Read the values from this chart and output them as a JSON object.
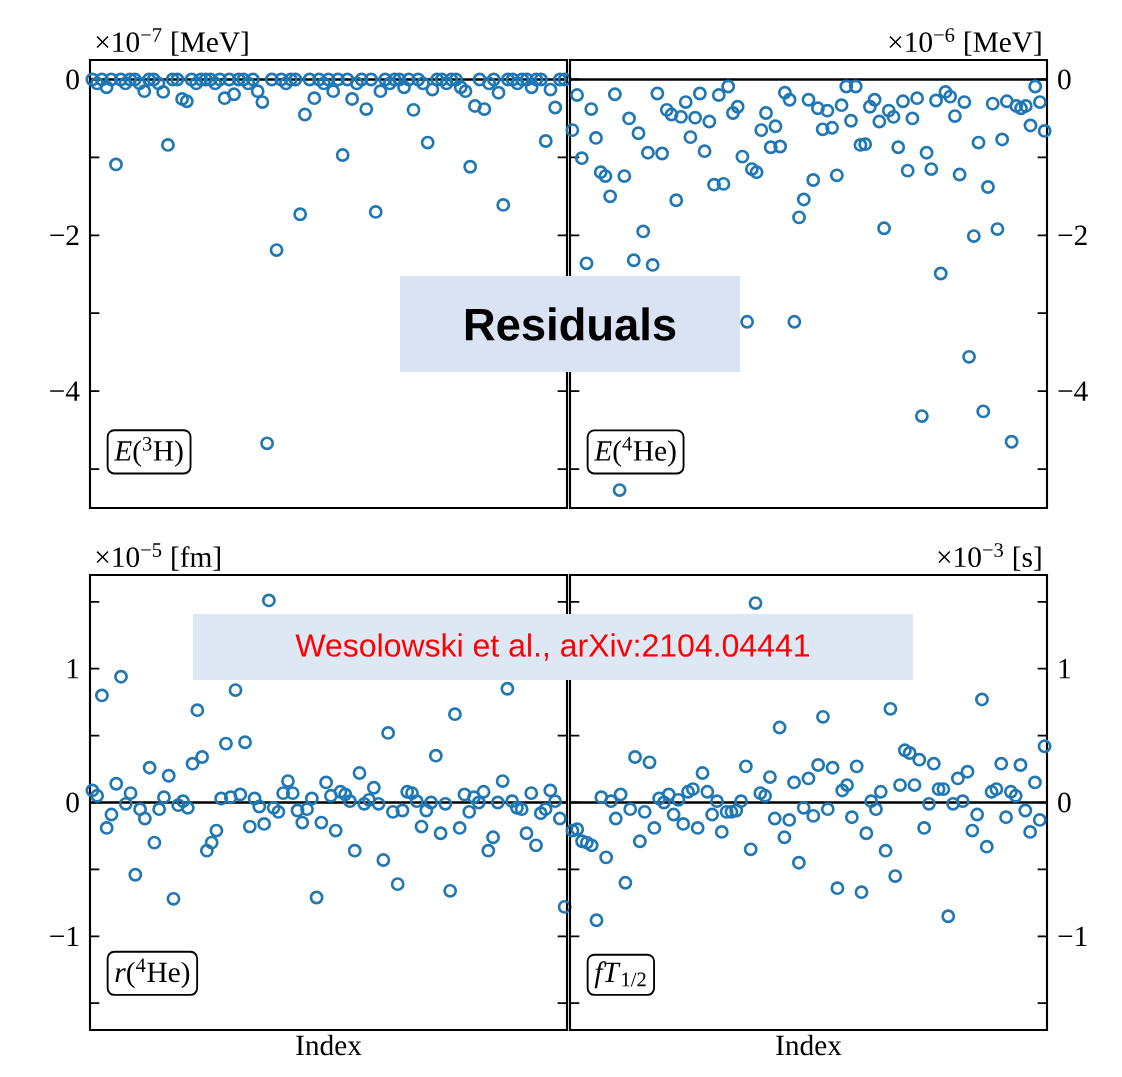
{
  "chart_data": [
    {
      "type": "scatter",
      "title": "*E*($^{3}$H)",
      "ylabel": "×10$^{−7}$ [MeV]",
      "color": "#1f77b4",
      "marker": "circle",
      "tick_labels": "y",
      "annotations": [
        "Residuals"
      ],
      "ylim": [
        -5.5,
        0.25
      ],
      "yticks": [
        {
          "value": -5,
          "label": null
        },
        {
          "value": -4,
          "label": "−4"
        },
        {
          "value": -3,
          "label": null
        },
        {
          "value": -2,
          "label": "−2"
        },
        {
          "value": -1,
          "label": null
        },
        0
      ],
      "ref_lines": [
        {
          "axis": "y",
          "value": 0
        }
      ],
      "categories": [
        null,
        null,
        null,
        null,
        null,
        null,
        null,
        null,
        null,
        null,
        null,
        null,
        null,
        null,
        null,
        null,
        null,
        null,
        null,
        null,
        null,
        null,
        null,
        null,
        null,
        null,
        null,
        null,
        null,
        null,
        null,
        null,
        null,
        null,
        null,
        null,
        null,
        null,
        null,
        null,
        null,
        null,
        null,
        null,
        null,
        null,
        null,
        null,
        null,
        null,
        null,
        null,
        null,
        null,
        null,
        null,
        null,
        null,
        null,
        null,
        null,
        null,
        null,
        null,
        null,
        null,
        null,
        null,
        null,
        null,
        null,
        null,
        null,
        null,
        null,
        null,
        null,
        null,
        null,
        null,
        null,
        null,
        null,
        null,
        null,
        null,
        null,
        null,
        null,
        null,
        null,
        null,
        null,
        null,
        null,
        null,
        null,
        null,
        null,
        null,
        null
      ],
      "values": [
        0,
        -0.05,
        0,
        -0.1,
        0,
        -1.09,
        0,
        -0.05,
        0,
        0,
        -0.05,
        -0.15,
        0,
        0,
        -0.05,
        -0.16,
        -0.84,
        0,
        0,
        -0.25,
        -0.28,
        0,
        -0.05,
        0,
        0,
        0,
        -0.05,
        0,
        -0.24,
        0,
        -0.19,
        0,
        0,
        -0.05,
        0,
        -0.15,
        -0.29,
        -4.67,
        0,
        -2.19,
        0,
        -0.05,
        0,
        0,
        -1.73,
        -0.45,
        0,
        -0.24,
        0,
        -0.05,
        0,
        -0.15,
        0,
        -0.97,
        0,
        -0.25,
        -0.05,
        0,
        -0.38,
        0,
        -1.7,
        -0.15,
        0,
        -0.05,
        0,
        0,
        -0.1,
        0,
        -0.39,
        0,
        -0.05,
        -0.81,
        -0.13,
        0,
        0,
        -0.05,
        0,
        0,
        -0.1,
        -0.15,
        -1.12,
        -0.34,
        0,
        -0.38,
        -0.05,
        0,
        -0.17,
        -1.61,
        0,
        0,
        -0.05,
        0,
        0,
        -0.1,
        0,
        0,
        -0.79,
        -0.13,
        -0.36,
        0,
        0
      ]
    },
    {
      "type": "scatter",
      "title": "*E*($^{4}$He)",
      "ylabel": "×10$^{−6}$ [MeV]",
      "color": "#1f77b4",
      "marker": "circle",
      "tick_labels": "y",
      "ylim": [
        -5.5,
        0.25
      ],
      "yticks": [
        {
          "value": -5,
          "label": null
        },
        {
          "value": -4,
          "label": "−4"
        },
        {
          "value": -3,
          "label": null
        },
        {
          "value": -2,
          "label": "−2"
        },
        {
          "value": -1,
          "label": null
        },
        0
      ],
      "ref_lines": [
        {
          "axis": "y",
          "value": 0
        }
      ],
      "categories": [
        null,
        null,
        null,
        null,
        null,
        null,
        null,
        null,
        null,
        null,
        null,
        null,
        null,
        null,
        null,
        null,
        null,
        null,
        null,
        null,
        null,
        null,
        null,
        null,
        null,
        null,
        null,
        null,
        null,
        null,
        null,
        null,
        null,
        null,
        null,
        null,
        null,
        null,
        null,
        null,
        null,
        null,
        null,
        null,
        null,
        null,
        null,
        null,
        null,
        null,
        null,
        null,
        null,
        null,
        null,
        null,
        null,
        null,
        null,
        null,
        null,
        null,
        null,
        null,
        null,
        null,
        null,
        null,
        null,
        null,
        null,
        null,
        null,
        null,
        null,
        null,
        null,
        null,
        null,
        null,
        null,
        null,
        null,
        null,
        null,
        null,
        null,
        null,
        null,
        null,
        null,
        null,
        null,
        null,
        null,
        null,
        null,
        null,
        null,
        null,
        null
      ],
      "values": [
        -0.65,
        -0.2,
        -1.01,
        -2.36,
        -0.38,
        -0.75,
        -1.19,
        -1.24,
        -1.5,
        -0.19,
        -5.27,
        -1.24,
        -0.5,
        -2.32,
        -0.69,
        -1.95,
        -0.94,
        -2.38,
        -0.18,
        -0.95,
        -0.39,
        -0.45,
        -1.55,
        -0.48,
        -0.29,
        -0.74,
        -0.49,
        -0.18,
        -0.92,
        -0.54,
        -1.35,
        -0.2,
        -1.34,
        -0.09,
        -0.43,
        -0.35,
        -0.99,
        -3.11,
        -1.15,
        -1.19,
        -0.65,
        -0.43,
        -0.87,
        -0.6,
        -0.86,
        -0.17,
        -0.26,
        -3.11,
        -1.77,
        -1.54,
        -0.26,
        -1.29,
        -0.37,
        -0.64,
        -0.4,
        -0.62,
        -1.23,
        -0.33,
        -0.09,
        -0.53,
        -0.09,
        -0.84,
        -0.83,
        -0.35,
        -0.26,
        -0.54,
        -1.91,
        -0.4,
        -0.48,
        -0.87,
        -0.28,
        -1.17,
        -0.5,
        -0.24,
        -4.32,
        -0.94,
        -1.15,
        -0.27,
        -2.49,
        -0.16,
        -0.22,
        -0.47,
        -1.22,
        -0.29,
        -3.56,
        -2.01,
        -0.81,
        -4.26,
        -1.38,
        -0.31,
        -1.92,
        -0.77,
        -0.28,
        -4.65,
        -0.34,
        -0.37,
        -0.34,
        -0.59,
        -0.09,
        -0.29,
        -0.66
      ]
    },
    {
      "type": "scatter",
      "title": "*r*($^{4}$He)",
      "ylabel": "×10$^{−5}$ [fm]",
      "xlabel": "Index",
      "color": "#1f77b4",
      "marker": "circle",
      "tick_labels": "y",
      "annotations": [
        "Wesolowski et al., arXiv:2104.04441"
      ],
      "ylim": [
        -1.7,
        1.7
      ],
      "yticks": [
        {
          "value": -1.5,
          "label": null
        },
        {
          "value": -1,
          "label": "−1"
        },
        {
          "value": -0.5,
          "label": null
        },
        0,
        {
          "value": 0.5,
          "label": null
        },
        1,
        {
          "value": 1.5,
          "label": null
        }
      ],
      "ref_lines": [
        {
          "axis": "y",
          "value": 0
        }
      ],
      "categories": [
        null,
        null,
        null,
        null,
        null,
        null,
        null,
        null,
        null,
        null,
        null,
        null,
        null,
        null,
        null,
        null,
        null,
        null,
        null,
        null,
        null,
        null,
        null,
        null,
        null,
        null,
        null,
        null,
        null,
        null,
        null,
        null,
        null,
        null,
        null,
        null,
        null,
        null,
        null,
        null,
        null,
        null,
        null,
        null,
        null,
        null,
        null,
        null,
        null,
        null,
        null,
        null,
        null,
        null,
        null,
        null,
        null,
        null,
        null,
        null,
        null,
        null,
        null,
        null,
        null,
        null,
        null,
        null,
        null,
        null,
        null,
        null,
        null,
        null,
        null,
        null,
        null,
        null,
        null,
        null,
        null,
        null,
        null,
        null,
        null,
        null,
        null,
        null,
        null,
        null,
        null,
        null,
        null,
        null,
        null,
        null,
        null,
        null,
        null,
        null
      ],
      "values": [
        0.09,
        0.05,
        0.8,
        -0.19,
        -0.09,
        0.14,
        0.94,
        -0.01,
        0.07,
        -0.54,
        -0.05,
        -0.12,
        0.26,
        -0.3,
        -0.05,
        0.04,
        0.2,
        -0.72,
        -0.02,
        0.01,
        -0.04,
        0.29,
        0.69,
        0.34,
        -0.36,
        -0.3,
        -0.21,
        0.03,
        0.44,
        0.04,
        0.84,
        0.06,
        0.45,
        -0.18,
        0.03,
        -0.03,
        -0.16,
        1.51,
        -0.04,
        -0.07,
        0.07,
        0.16,
        0.07,
        -0.06,
        -0.15,
        -0.05,
        0.03,
        -0.71,
        -0.15,
        0.15,
        0.05,
        -0.21,
        0.08,
        0.06,
        0.01,
        -0.36,
        0.22,
        -0.01,
        0.02,
        0.11,
        -0.01,
        -0.43,
        0.52,
        -0.07,
        -0.61,
        -0.06,
        0.08,
        0.07,
        0.01,
        -0.18,
        -0.06,
        0.0,
        0.35,
        -0.23,
        -0.01,
        -0.66,
        0.66,
        -0.19,
        0.06,
        -0.07,
        0.04,
        0.0,
        0.08,
        -0.36,
        -0.26,
        0.0,
        0.16,
        0.85,
        0.01,
        -0.04,
        -0.05,
        -0.23,
        0.07,
        -0.32,
        -0.08,
        -0.05,
        0.09,
        0.01,
        -0.12,
        -0.78
      ]
    },
    {
      "type": "scatter",
      "title": "*fT*$_{1/2}$",
      "ylabel": "×10$^{−3}$ [s]",
      "xlabel": "Index",
      "color": "#1f77b4",
      "marker": "circle",
      "tick_labels": "y",
      "ylim": [
        -1.7,
        1.7
      ],
      "yticks": [
        {
          "value": -1.5,
          "label": null
        },
        {
          "value": -1,
          "label": "−1"
        },
        {
          "value": -0.5,
          "label": null
        },
        0,
        {
          "value": 0.5,
          "label": null
        },
        1,
        {
          "value": 1.5,
          "label": null
        }
      ],
      "ref_lines": [
        {
          "axis": "y",
          "value": 0
        }
      ],
      "categories": [
        null,
        null,
        null,
        null,
        null,
        null,
        null,
        null,
        null,
        null,
        null,
        null,
        null,
        null,
        null,
        null,
        null,
        null,
        null,
        null,
        null,
        null,
        null,
        null,
        null,
        null,
        null,
        null,
        null,
        null,
        null,
        null,
        null,
        null,
        null,
        null,
        null,
        null,
        null,
        null,
        null,
        null,
        null,
        null,
        null,
        null,
        null,
        null,
        null,
        null,
        null,
        null,
        null,
        null,
        null,
        null,
        null,
        null,
        null,
        null,
        null,
        null,
        null,
        null,
        null,
        null,
        null,
        null,
        null,
        null,
        null,
        null,
        null,
        null,
        null,
        null,
        null,
        null,
        null,
        null,
        null,
        null,
        null,
        null,
        null,
        null,
        null,
        null,
        null,
        null,
        null,
        null,
        null,
        null,
        null,
        null,
        null,
        null,
        null
      ],
      "values": [
        -0.21,
        -0.2,
        -0.29,
        -0.3,
        -0.32,
        -0.88,
        0.04,
        -0.41,
        0.01,
        -0.12,
        0.06,
        -0.6,
        -0.05,
        0.34,
        -0.29,
        -0.07,
        0.3,
        -0.19,
        0.03,
        0.0,
        0.06,
        -0.09,
        0.02,
        -0.16,
        0.08,
        0.1,
        -0.19,
        0.22,
        0.08,
        -0.09,
        0.01,
        -0.22,
        -0.07,
        -0.07,
        -0.06,
        0.01,
        0.27,
        -0.35,
        1.49,
        0.07,
        0.05,
        0.19,
        -0.12,
        0.56,
        -0.26,
        -0.13,
        0.15,
        -0.45,
        -0.04,
        0.18,
        -0.1,
        0.28,
        0.64,
        -0.05,
        0.26,
        -0.64,
        0.09,
        0.13,
        -0.11,
        0.27,
        -0.67,
        -0.23,
        0.01,
        -0.05,
        0.08,
        -0.36,
        0.7,
        -0.55,
        0.13,
        0.39,
        0.37,
        0.13,
        0.32,
        -0.19,
        -0.01,
        0.29,
        0.1,
        0.1,
        -0.85,
        -0.01,
        0.18,
        0.01,
        0.23,
        -0.21,
        -0.09,
        0.77,
        -0.33,
        0.08,
        0.1,
        0.29,
        -0.11,
        0.08,
        0.05,
        0.28,
        -0.06,
        -0.22,
        0.15,
        -0.13,
        0.42
      ]
    }
  ]
}
